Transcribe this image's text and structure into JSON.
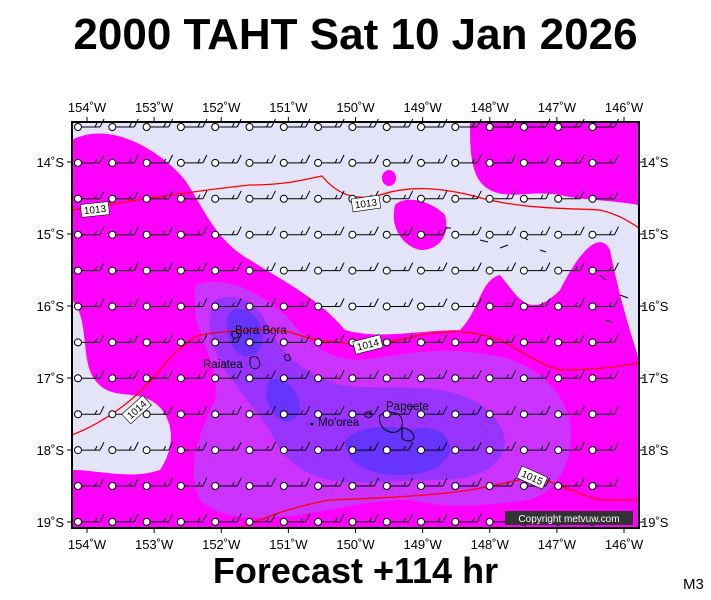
{
  "title": "2000 TAHT Sat 10 Jan 2026",
  "forecast_label": "Forecast +114 hr",
  "model_code": "M3",
  "copyright": "Copyright metvuw.com",
  "colors": {
    "background": "#e4e4f8",
    "precip_light": "#ff00ff",
    "precip_medium": "#cc33ff",
    "precip_heavy": "#9933ff",
    "precip_very_heavy": "#6633ff",
    "isobar": "#ff0000",
    "coast": "#000000"
  },
  "map": {
    "projection": "lat-lon",
    "lon_range": [
      -154,
      -146
    ],
    "lat_range": [
      -19.1,
      -13.4
    ],
    "lon_ticks": [
      "154˚W",
      "153˚W",
      "152˚W",
      "151˚W",
      "150˚W",
      "149˚W",
      "148˚W",
      "147˚W",
      "146˚W"
    ],
    "lat_ticks": [
      "14˚S",
      "15˚S",
      "16˚S",
      "17˚S",
      "18˚S",
      "19˚S"
    ],
    "places": [
      {
        "name": "Bora Bora",
        "lon": -151.75,
        "lat": -16.5
      },
      {
        "name": "Raiatea",
        "lon": -151.45,
        "lat": -16.83
      },
      {
        "name": "Mo'orea",
        "lon": -149.83,
        "lat": -17.53
      },
      {
        "name": "Papeete",
        "lon": -149.57,
        "lat": -17.53
      }
    ],
    "isobars": [
      {
        "label": "1013",
        "hpa": 1013
      },
      {
        "label": "1013",
        "hpa": 1013
      },
      {
        "label": "1014",
        "hpa": 1014
      },
      {
        "label": "1014",
        "hpa": 1014
      },
      {
        "label": "1015",
        "hpa": 1015
      }
    ],
    "wind_barbs": "easterly ~10 kt across domain"
  }
}
